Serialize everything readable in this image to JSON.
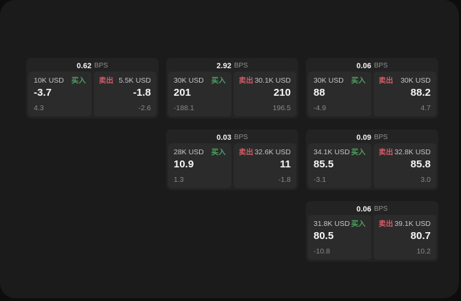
{
  "colors": {
    "outer_bg": "#0d0d0d",
    "panel_bg": "#1b1b1b",
    "card_bg": "#232323",
    "tile_bg": "#2b2b2b",
    "buy_accent": "#4da05f",
    "sell_accent": "#d15b66"
  },
  "cards": [
    {
      "bps": "0.62",
      "bps_unit": "BPS",
      "buy": {
        "notional": "10K USD",
        "side_label": "买入",
        "price": "-3.7",
        "delta": "4.3"
      },
      "sell": {
        "side_label": "卖出",
        "notional": "5.5K USD",
        "price": "-1.8",
        "delta": "-2.6"
      }
    },
    {
      "bps": "2.92",
      "bps_unit": "BPS",
      "buy": {
        "notional": "30K USD",
        "side_label": "买入",
        "price": "201",
        "delta": "-188.1"
      },
      "sell": {
        "side_label": "卖出",
        "notional": "30.1K USD",
        "price": "210",
        "delta": "196.5"
      }
    },
    {
      "bps": "0.06",
      "bps_unit": "BPS",
      "buy": {
        "notional": "30K USD",
        "side_label": "买入",
        "price": "88",
        "delta": "-4.9"
      },
      "sell": {
        "side_label": "卖出",
        "notional": "30K USD",
        "price": "88.2",
        "delta": "4.7"
      }
    },
    {
      "bps": "0.03",
      "bps_unit": "BPS",
      "buy": {
        "notional": "28K USD",
        "side_label": "买入",
        "price": "10.9",
        "delta": "1.3"
      },
      "sell": {
        "side_label": "卖出",
        "notional": "32.6K USD",
        "price": "11",
        "delta": "-1.8"
      }
    },
    {
      "bps": "0.09",
      "bps_unit": "BPS",
      "buy": {
        "notional": "34.1K USD",
        "side_label": "买入",
        "price": "85.5",
        "delta": "-3.1"
      },
      "sell": {
        "side_label": "卖出",
        "notional": "32.8K USD",
        "price": "85.8",
        "delta": "3.0"
      }
    },
    {
      "bps": "0.06",
      "bps_unit": "BPS",
      "buy": {
        "notional": "31.8K USD",
        "side_label": "买入",
        "price": "80.5",
        "delta": "-10.8"
      },
      "sell": {
        "side_label": "卖出",
        "notional": "39.1K USD",
        "price": "80.7",
        "delta": "10.2"
      }
    }
  ]
}
